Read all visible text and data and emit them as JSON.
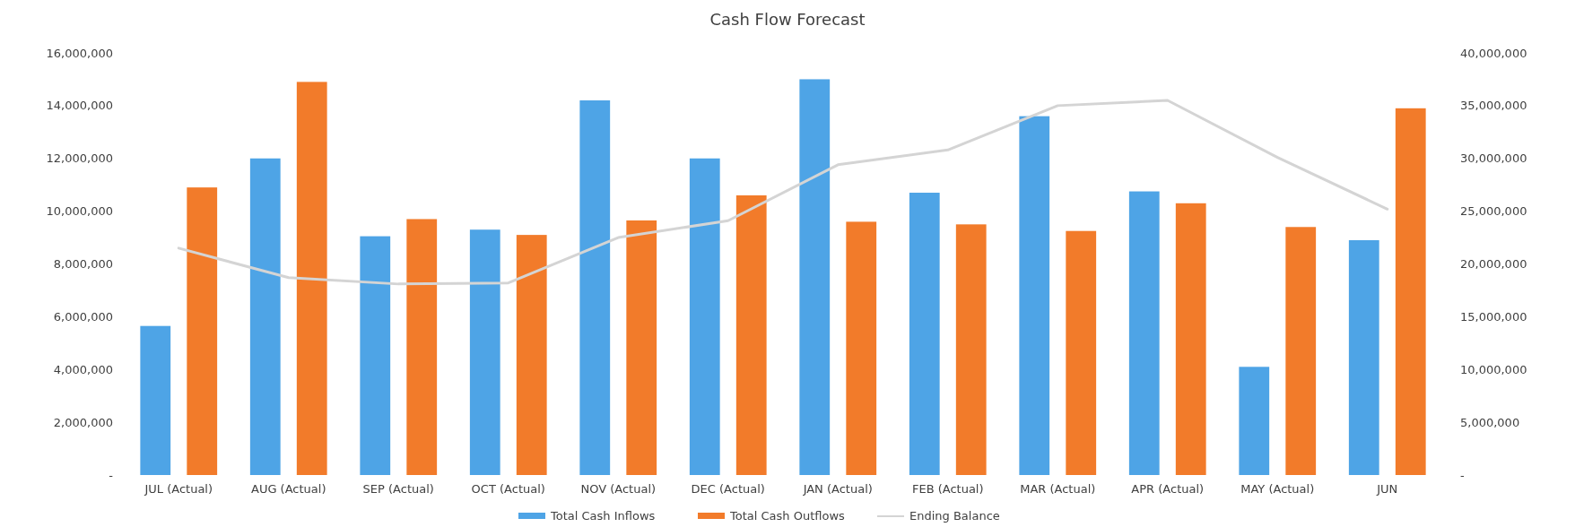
{
  "chart_data": {
    "type": "bar",
    "title": "Cash Flow Forecast",
    "categories": [
      "JUL (Actual)",
      "AUG  (Actual)",
      "SEP (Actual)",
      "OCT (Actual)",
      "NOV (Actual)",
      "DEC (Actual)",
      "JAN (Actual)",
      "FEB (Actual)",
      "MAR (Actual)",
      "APR (Actual)",
      "MAY (Actual)",
      "JUN"
    ],
    "series": [
      {
        "name": "Total Cash Inflows",
        "color": "#4ea4e6",
        "values": [
          5650000,
          12000000,
          9050000,
          9300000,
          14200000,
          12000000,
          15000000,
          10700000,
          13600000,
          10750000,
          4100000,
          8900000
        ]
      },
      {
        "name": "Total Cash Outflows",
        "color": "#f27b2a",
        "values": [
          10900000,
          14900000,
          9700000,
          9100000,
          9650000,
          10600000,
          9600000,
          9500000,
          9250000,
          10300000,
          9400000,
          13900000
        ]
      },
      {
        "name": "Ending Balance",
        "type": "line",
        "axis": "y2",
        "color": "#d4d4d4",
        "values": [
          21500000,
          18700000,
          18100000,
          18200000,
          22500000,
          24100000,
          29400000,
          30800000,
          35000000,
          35500000,
          30100000,
          25200000
        ]
      }
    ],
    "ylim": [
      0,
      16000000
    ],
    "yticks": [
      {
        "value": 0,
        "label": "-"
      },
      {
        "value": 2000000,
        "label": "2,000,000"
      },
      {
        "value": 4000000,
        "label": "4,000,000"
      },
      {
        "value": 6000000,
        "label": "6,000,000"
      },
      {
        "value": 8000000,
        "label": "8,000,000"
      },
      {
        "value": 10000000,
        "label": "10,000,000"
      },
      {
        "value": 12000000,
        "label": "12,000,000"
      },
      {
        "value": 14000000,
        "label": "14,000,000"
      },
      {
        "value": 16000000,
        "label": "16,000,000"
      }
    ],
    "y2lim": [
      0,
      40000000
    ],
    "y2ticks": [
      {
        "value": 0,
        "label": "-"
      },
      {
        "value": 5000000,
        "label": "5,000,000"
      },
      {
        "value": 10000000,
        "label": "10,000,000"
      },
      {
        "value": 15000000,
        "label": "15,000,000"
      },
      {
        "value": 20000000,
        "label": "20,000,000"
      },
      {
        "value": 25000000,
        "label": "25,000,000"
      },
      {
        "value": 30000000,
        "label": "30,000,000"
      },
      {
        "value": 35000000,
        "label": "35,000,000"
      },
      {
        "value": 40000000,
        "label": "40,000,000"
      }
    ],
    "grid": false,
    "legend": "bottom",
    "marker": "none",
    "line_style": "solid"
  }
}
